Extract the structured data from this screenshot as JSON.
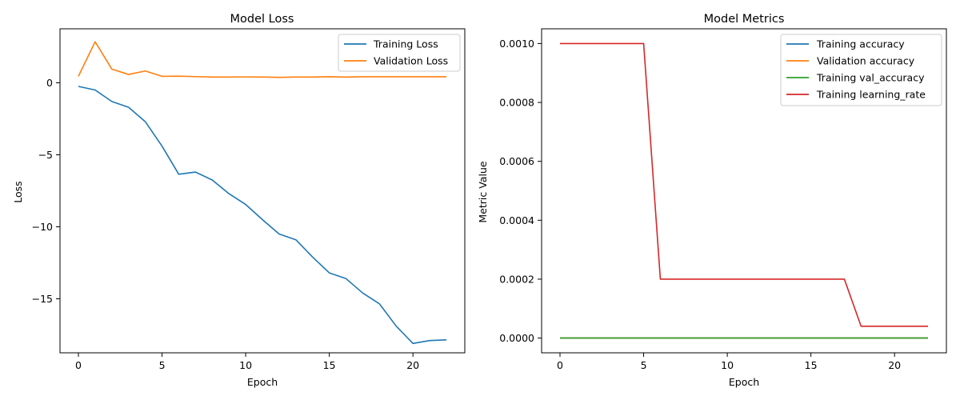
{
  "chart_data": [
    {
      "type": "line",
      "title": "Model Loss",
      "xlabel": "Epoch",
      "ylabel": "Loss",
      "xlim": [
        -1.1,
        23.1
      ],
      "ylim": [
        -18.75,
        3.75
      ],
      "xticks": [
        0,
        5,
        10,
        15,
        20
      ],
      "yticks": [
        -15,
        -10,
        -5,
        0
      ],
      "grid": false,
      "legend_position": "upper right",
      "series": [
        {
          "name": "Training Loss",
          "color": "#1f77b4",
          "x": [
            0,
            1,
            2,
            3,
            4,
            5,
            6,
            7,
            8,
            9,
            10,
            11,
            12,
            13,
            14,
            15,
            16,
            17,
            18,
            19,
            20,
            21,
            22
          ],
          "y": [
            -0.25,
            -0.5,
            -1.3,
            -1.7,
            -2.7,
            -4.4,
            -6.35,
            -6.2,
            -6.75,
            -7.7,
            -8.45,
            -9.5,
            -10.5,
            -10.9,
            -12.1,
            -13.2,
            -13.6,
            -14.6,
            -15.35,
            -16.9,
            -18.1,
            -17.9,
            -17.85
          ]
        },
        {
          "name": "Validation Loss",
          "color": "#ff7f0e",
          "x": [
            0,
            1,
            2,
            3,
            4,
            5,
            6,
            7,
            8,
            9,
            10,
            11,
            12,
            13,
            14,
            15,
            16,
            17,
            18,
            19,
            20,
            21,
            22
          ],
          "y": [
            0.45,
            2.85,
            0.95,
            0.58,
            0.82,
            0.45,
            0.46,
            0.43,
            0.4,
            0.4,
            0.41,
            0.4,
            0.38,
            0.4,
            0.4,
            0.42,
            0.4,
            0.42,
            0.42,
            0.42,
            0.42,
            0.42,
            0.42
          ]
        }
      ]
    },
    {
      "type": "line",
      "title": "Model Metrics",
      "xlabel": "Epoch",
      "ylabel": "Metric Value",
      "xlim": [
        -1.1,
        23.1
      ],
      "ylim": [
        -5e-05,
        0.00105
      ],
      "xticks": [
        0,
        5,
        10,
        15,
        20
      ],
      "yticks": [
        0.0,
        0.0002,
        0.0004,
        0.0006,
        0.0008,
        0.001
      ],
      "ytick_labels": [
        "0.0000",
        "0.0002",
        "0.0004",
        "0.0006",
        "0.0008",
        "0.0010"
      ],
      "grid": false,
      "legend_position": "upper right",
      "series": [
        {
          "name": "Training accuracy",
          "color": "#1f77b4",
          "x": [
            0,
            1,
            2,
            3,
            4,
            5,
            6,
            7,
            8,
            9,
            10,
            11,
            12,
            13,
            14,
            15,
            16,
            17,
            18,
            19,
            20,
            21,
            22
          ],
          "y": [
            0,
            0,
            0,
            0,
            0,
            0,
            0,
            0,
            0,
            0,
            0,
            0,
            0,
            0,
            0,
            0,
            0,
            0,
            0,
            0,
            0,
            0,
            0
          ]
        },
        {
          "name": "Validation accuracy",
          "color": "#ff7f0e",
          "x": [
            0,
            1,
            2,
            3,
            4,
            5,
            6,
            7,
            8,
            9,
            10,
            11,
            12,
            13,
            14,
            15,
            16,
            17,
            18,
            19,
            20,
            21,
            22
          ],
          "y": [
            0,
            0,
            0,
            0,
            0,
            0,
            0,
            0,
            0,
            0,
            0,
            0,
            0,
            0,
            0,
            0,
            0,
            0,
            0,
            0,
            0,
            0,
            0
          ]
        },
        {
          "name": "Training val_accuracy",
          "color": "#2ca02c",
          "x": [
            0,
            1,
            2,
            3,
            4,
            5,
            6,
            7,
            8,
            9,
            10,
            11,
            12,
            13,
            14,
            15,
            16,
            17,
            18,
            19,
            20,
            21,
            22
          ],
          "y": [
            0,
            0,
            0,
            0,
            0,
            0,
            0,
            0,
            0,
            0,
            0,
            0,
            0,
            0,
            0,
            0,
            0,
            0,
            0,
            0,
            0,
            0,
            0
          ]
        },
        {
          "name": "Training learning_rate",
          "color": "#d62728",
          "x": [
            0,
            1,
            2,
            3,
            4,
            5,
            6,
            7,
            8,
            9,
            10,
            11,
            12,
            13,
            14,
            15,
            16,
            17,
            18,
            19,
            20,
            21,
            22
          ],
          "y": [
            0.001,
            0.001,
            0.001,
            0.001,
            0.001,
            0.001,
            0.0002,
            0.0002,
            0.0002,
            0.0002,
            0.0002,
            0.0002,
            0.0002,
            0.0002,
            0.0002,
            0.0002,
            0.0002,
            0.0002,
            4e-05,
            4e-05,
            4e-05,
            4e-05,
            4e-05
          ]
        }
      ]
    }
  ]
}
